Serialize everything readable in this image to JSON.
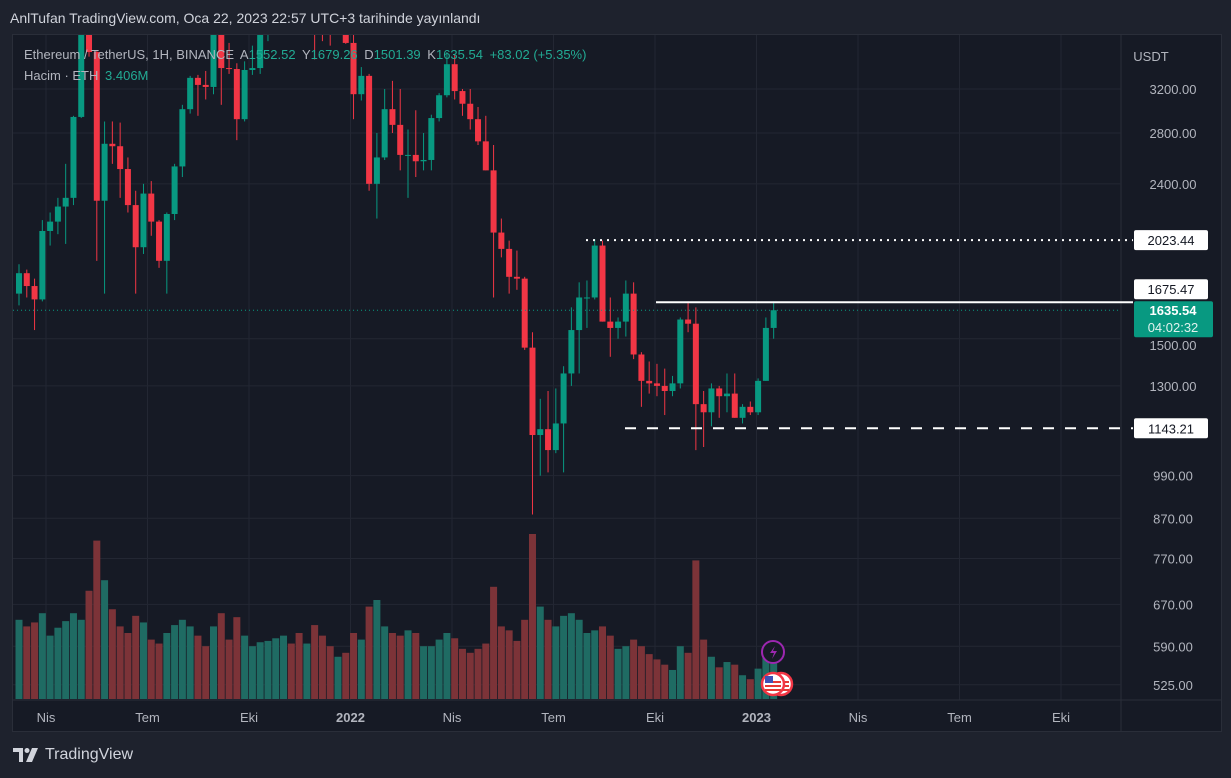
{
  "published_title": "AnlTufan TradingView.com, Oca 22, 2023 22:57 UTC+3 tarihinde yayınlandı",
  "legend": {
    "symbol": "Ethereum / TetherUS, 1H, BINANCE",
    "open_label": "A",
    "open": "1552.52",
    "high_label": "Y",
    "high": "1679.26",
    "low_label": "D",
    "low": "1501.39",
    "close_label": "K",
    "close": "1635.54",
    "change": "+83.02 (+5.35%)",
    "volume_label": "Hacim · ETH",
    "volume": "3.406M"
  },
  "price_axis": {
    "currency": "USDT",
    "ticks": [
      "3200.00",
      "2800.00",
      "2400.00",
      "1500.00",
      "1300.00",
      "990.00",
      "870.00",
      "770.00",
      "670.00",
      "590.00",
      "525.00"
    ]
  },
  "time_axis": {
    "labels": [
      "Nis",
      "Tem",
      "Eki",
      "2022",
      "Nis",
      "Tem",
      "Eki",
      "2023",
      "Nis",
      "Tem",
      "Eki"
    ],
    "bold": [
      "2022",
      "2023"
    ]
  },
  "levels": [
    {
      "name": "resistance-2023",
      "value": "2023.44",
      "style": "dotted"
    },
    {
      "name": "resistance-1675",
      "value": "1675.47",
      "style": "solid"
    },
    {
      "name": "support-1143",
      "value": "1143.21",
      "style": "dashed"
    }
  ],
  "current_price": {
    "value": "1635.54",
    "countdown": "04:02:32"
  },
  "colors": {
    "up": "#089981",
    "down": "#f23645",
    "vol_up": "#1f6b63",
    "vol_down": "#7c3338",
    "badge": "#089981"
  },
  "events": [
    {
      "icon": "lightning-icon"
    },
    {
      "icon": "us-flag-icon"
    },
    {
      "icon": "us-flag-icon"
    }
  ],
  "brand": "TradingView",
  "chart_data": {
    "type": "candlestick",
    "title": "Ethereum / TetherUS, BINANCE",
    "ylabel": "USDT",
    "yscale": "log",
    "columns": [
      "open",
      "high",
      "low",
      "close",
      "volume_M"
    ],
    "candles": [
      [
        1720,
        1880,
        1660,
        1830,
        6.0
      ],
      [
        1830,
        1850,
        1700,
        1760,
        5.5
      ],
      [
        1760,
        1800,
        1540,
        1690,
        5.8
      ],
      [
        1690,
        2150,
        1680,
        2080,
        6.5
      ],
      [
        2080,
        2200,
        1990,
        2140,
        4.8
      ],
      [
        2140,
        2300,
        2060,
        2240,
        5.4
      ],
      [
        2240,
        2550,
        2000,
        2300,
        5.9
      ],
      [
        2300,
        2950,
        2250,
        2940,
        6.5
      ],
      [
        2940,
        3960,
        2930,
        3930,
        6.0
      ],
      [
        3930,
        4370,
        3530,
        3580,
        8.2
      ],
      [
        3580,
        3590,
        1900,
        2280,
        12.0
      ],
      [
        2280,
        2900,
        1720,
        2710,
        9.0
      ],
      [
        2710,
        2900,
        2550,
        2690,
        6.8
      ],
      [
        2690,
        2890,
        2300,
        2510,
        5.5
      ],
      [
        2510,
        2600,
        2200,
        2250,
        5.0
      ],
      [
        2250,
        2350,
        1720,
        1980,
        6.3
      ],
      [
        1980,
        2400,
        1940,
        2330,
        5.8
      ],
      [
        2330,
        2420,
        2050,
        2140,
        4.5
      ],
      [
        2140,
        2150,
        1860,
        1900,
        4.2
      ],
      [
        1900,
        2200,
        1720,
        2190,
        5.0
      ],
      [
        2190,
        2550,
        2150,
        2530,
        5.6
      ],
      [
        2530,
        3050,
        2450,
        3010,
        6.0
      ],
      [
        3010,
        3330,
        2970,
        3310,
        5.5
      ],
      [
        3310,
        3340,
        2950,
        3240,
        4.8
      ],
      [
        3240,
        3380,
        3100,
        3220,
        4.0
      ],
      [
        3220,
        3950,
        3150,
        3930,
        5.5
      ],
      [
        3930,
        4030,
        3050,
        3410,
        6.5
      ],
      [
        3410,
        3680,
        3350,
        3400,
        4.5
      ],
      [
        3400,
        3460,
        2740,
        2920,
        6.2
      ],
      [
        2920,
        3480,
        2900,
        3390,
        4.8
      ],
      [
        3390,
        3650,
        3340,
        3410,
        4.0
      ],
      [
        3410,
        3900,
        3350,
        3850,
        4.3
      ],
      [
        3850,
        4200,
        3700,
        4100,
        4.4
      ],
      [
        4100,
        4460,
        3900,
        4290,
        4.6
      ],
      [
        4290,
        4860,
        4150,
        4730,
        4.8
      ],
      [
        4730,
        4870,
        4400,
        4570,
        4.2
      ],
      [
        4570,
        4600,
        3900,
        4090,
        5.0
      ],
      [
        4090,
        4550,
        4000,
        4290,
        4.2
      ],
      [
        4290,
        4780,
        3500,
        4120,
        5.6
      ],
      [
        4120,
        4400,
        3700,
        3960,
        4.8
      ],
      [
        3960,
        4130,
        3650,
        3920,
        4.0
      ],
      [
        3920,
        4130,
        3900,
        4050,
        3.2
      ],
      [
        4050,
        4100,
        3670,
        3680,
        3.5
      ],
      [
        3680,
        3840,
        2920,
        3150,
        5.0
      ],
      [
        3150,
        3420,
        3090,
        3330,
        4.5
      ],
      [
        3330,
        3350,
        2350,
        2400,
        7.0
      ],
      [
        2400,
        2800,
        2160,
        2600,
        7.5
      ],
      [
        2600,
        3200,
        2580,
        3010,
        5.5
      ],
      [
        3010,
        3280,
        2800,
        2870,
        5.0
      ],
      [
        2870,
        3200,
        2500,
        2620,
        4.8
      ],
      [
        2620,
        2830,
        2300,
        2620,
        5.2
      ],
      [
        2620,
        3000,
        2450,
        2570,
        5.0
      ],
      [
        2570,
        2800,
        2500,
        2580,
        4.0
      ],
      [
        2580,
        2960,
        2500,
        2930,
        4.0
      ],
      [
        2930,
        3160,
        2900,
        3140,
        4.5
      ],
      [
        3140,
        3580,
        3120,
        3450,
        5.0
      ],
      [
        3450,
        3550,
        3100,
        3180,
        4.6
      ],
      [
        3180,
        3200,
        2950,
        3060,
        3.8
      ],
      [
        3060,
        3200,
        2830,
        2920,
        3.5
      ],
      [
        2920,
        3030,
        2700,
        2730,
        3.8
      ],
      [
        2730,
        2950,
        2500,
        2500,
        4.2
      ],
      [
        2500,
        2700,
        1700,
        2070,
        8.5
      ],
      [
        2070,
        2160,
        1920,
        1970,
        5.5
      ],
      [
        1970,
        2020,
        1720,
        1810,
        5.2
      ],
      [
        1810,
        1960,
        1740,
        1800,
        4.4
      ],
      [
        1800,
        1810,
        1450,
        1460,
        6.0
      ],
      [
        1460,
        1530,
        880,
        1120,
        12.5
      ],
      [
        1120,
        1250,
        990,
        1140,
        7.0
      ],
      [
        1140,
        1280,
        1000,
        1070,
        6.0
      ],
      [
        1070,
        1290,
        1060,
        1160,
        5.5
      ],
      [
        1160,
        1380,
        1000,
        1350,
        6.3
      ],
      [
        1350,
        1650,
        1300,
        1540,
        6.5
      ],
      [
        1540,
        1780,
        1350,
        1700,
        6.0
      ],
      [
        1700,
        1790,
        1550,
        1700,
        5.0
      ],
      [
        1700,
        2030,
        1690,
        1990,
        5.2
      ],
      [
        1990,
        2020,
        1580,
        1580,
        5.5
      ],
      [
        1580,
        1700,
        1420,
        1550,
        4.8
      ],
      [
        1550,
        1600,
        1500,
        1580,
        3.8
      ],
      [
        1580,
        1790,
        1510,
        1720,
        4.0
      ],
      [
        1720,
        1780,
        1410,
        1430,
        4.5
      ],
      [
        1430,
        1440,
        1220,
        1320,
        4.0
      ],
      [
        1320,
        1400,
        1270,
        1310,
        3.4
      ],
      [
        1310,
        1390,
        1260,
        1300,
        3.0
      ],
      [
        1300,
        1370,
        1190,
        1280,
        2.6
      ],
      [
        1280,
        1340,
        1260,
        1310,
        2.2
      ],
      [
        1310,
        1600,
        1290,
        1590,
        4.0
      ],
      [
        1590,
        1680,
        1530,
        1570,
        3.5
      ],
      [
        1570,
        1650,
        1070,
        1230,
        10.5
      ],
      [
        1230,
        1280,
        1080,
        1200,
        4.5
      ],
      [
        1200,
        1310,
        1150,
        1290,
        3.2
      ],
      [
        1290,
        1300,
        1180,
        1260,
        2.4
      ],
      [
        1260,
        1350,
        1200,
        1270,
        2.8
      ],
      [
        1270,
        1350,
        1180,
        1180,
        2.6
      ],
      [
        1180,
        1230,
        1160,
        1220,
        1.8
      ],
      [
        1220,
        1240,
        1190,
        1200,
        1.5
      ],
      [
        1200,
        1330,
        1190,
        1320,
        2.3
      ],
      [
        1320,
        1600,
        1320,
        1550,
        3.8
      ],
      [
        1550,
        1680,
        1500,
        1635.54,
        3.406
      ]
    ]
  }
}
